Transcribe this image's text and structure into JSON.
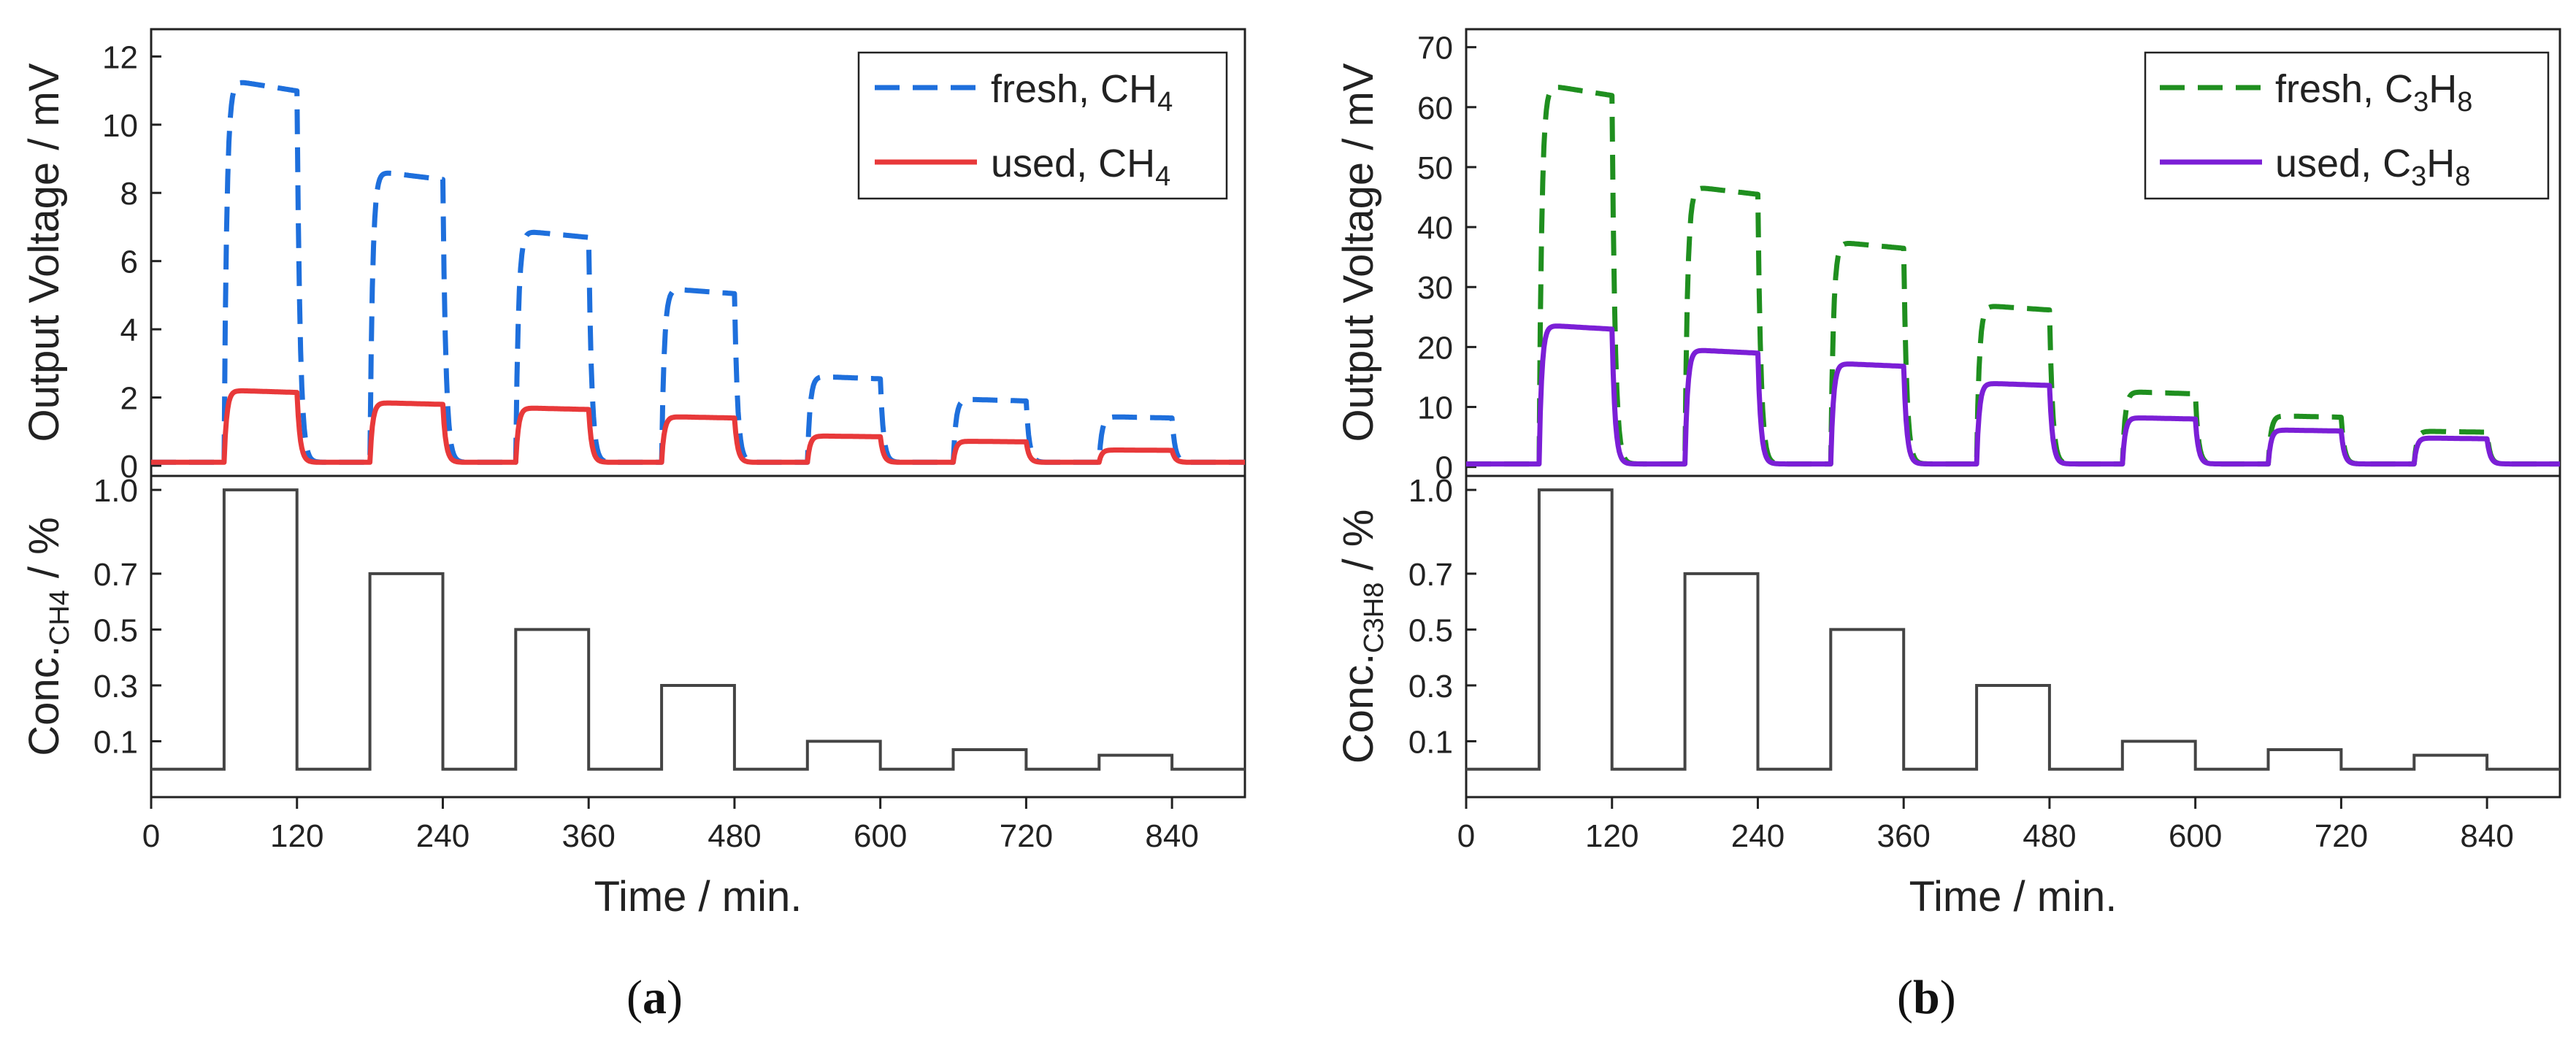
{
  "panels": [
    {
      "panel_label": "a",
      "top": {
        "ylabel": "Output Voltage / mV",
        "yticks": [
          0,
          2,
          4,
          6,
          8,
          10,
          12
        ],
        "ylim": [
          -0.3,
          12.8
        ],
        "legend": [
          {
            "prefix": "fresh, CH",
            "sub": "4",
            "suffix": "",
            "color": "#1e6fdc",
            "dash": true
          },
          {
            "prefix": "used, CH",
            "sub": "4",
            "suffix": "",
            "color": "#e8393a",
            "dash": false
          }
        ]
      },
      "bottom": {
        "ylabel_main": "Conc.",
        "ylabel_sub": "CH4",
        "ylabel_tail": " / %",
        "yticks": [
          0.1,
          0.3,
          0.5,
          0.7,
          1.0
        ],
        "ytick_labels": [
          "0.1",
          "0.3",
          "0.5",
          "0.7",
          "1.0"
        ],
        "ylim": [
          -0.1,
          1.05
        ]
      },
      "x_axis": {
        "label": "Time / min.",
        "ticks": [
          0,
          120,
          240,
          360,
          480,
          600,
          720,
          840
        ],
        "xlim": [
          0,
          900
        ]
      }
    },
    {
      "panel_label": "b",
      "top": {
        "ylabel": "Output Voltage / mV",
        "yticks": [
          0,
          10,
          20,
          30,
          40,
          50,
          60,
          70
        ],
        "ylim": [
          -1.5,
          73
        ],
        "legend": [
          {
            "prefix": "fresh, C",
            "sub": "3",
            "suffix": "H",
            "sub2": "8",
            "color": "#1f8f1f",
            "dash": true
          },
          {
            "prefix": "used, C",
            "sub": "3",
            "suffix": "H",
            "sub2": "8",
            "color": "#7b1fd6",
            "dash": false
          }
        ]
      },
      "bottom": {
        "ylabel_main": "Conc.",
        "ylabel_sub": "C3H8",
        "ylabel_tail": " / %",
        "yticks": [
          0.1,
          0.3,
          0.5,
          0.7,
          1.0
        ],
        "ytick_labels": [
          "0.1",
          "0.3",
          "0.5",
          "0.7",
          "1.0"
        ],
        "ylim": [
          -0.1,
          1.05
        ]
      },
      "x_axis": {
        "label": "Time / min.",
        "ticks": [
          0,
          120,
          240,
          360,
          480,
          600,
          720,
          840
        ],
        "xlim": [
          0,
          900
        ]
      }
    }
  ],
  "chart_data": [
    {
      "type": "line",
      "title": "",
      "xlabel": "Time / min.",
      "ylabel": "Output Voltage / mV",
      "xlim": [
        0,
        900
      ],
      "ylim": [
        -0.3,
        12.8
      ],
      "pulse_windows": [
        [
          60,
          120
        ],
        [
          180,
          240
        ],
        [
          300,
          360
        ],
        [
          420,
          480
        ],
        [
          540,
          600
        ],
        [
          660,
          720
        ],
        [
          780,
          840
        ]
      ],
      "series": [
        {
          "name": "fresh, CH4",
          "style": "dashed",
          "color": "#1e6fdc",
          "baseline": 0.1,
          "plateau_values": [
            11.0,
            8.4,
            6.7,
            5.05,
            2.55,
            1.9,
            1.4
          ]
        },
        {
          "name": "used, CH4",
          "style": "solid",
          "color": "#e8393a",
          "baseline": 0.1,
          "plateau_values": [
            2.15,
            1.8,
            1.65,
            1.4,
            0.85,
            0.7,
            0.45
          ]
        }
      ]
    },
    {
      "type": "line",
      "title": "",
      "xlabel": "Time / min.",
      "ylabel": "Conc. CH4 / %",
      "xlim": [
        0,
        900
      ],
      "ylim": [
        -0.1,
        1.05
      ],
      "series": [
        {
          "name": "Conc. CH4",
          "style": "step",
          "color": "#444444",
          "baseline": 0,
          "pulse_windows": [
            [
              60,
              120
            ],
            [
              180,
              240
            ],
            [
              300,
              360
            ],
            [
              420,
              480
            ],
            [
              540,
              600
            ],
            [
              660,
              720
            ],
            [
              780,
              840
            ]
          ],
          "values": [
            1.0,
            0.7,
            0.5,
            0.3,
            0.1,
            0.07,
            0.05
          ]
        }
      ]
    },
    {
      "type": "line",
      "title": "",
      "xlabel": "Time / min.",
      "ylabel": "Output Voltage / mV",
      "xlim": [
        0,
        900
      ],
      "ylim": [
        -1.5,
        73
      ],
      "pulse_windows": [
        [
          60,
          120
        ],
        [
          180,
          240
        ],
        [
          300,
          360
        ],
        [
          420,
          480
        ],
        [
          540,
          600
        ],
        [
          660,
          720
        ],
        [
          780,
          840
        ]
      ],
      "series": [
        {
          "name": "fresh, C3H8",
          "style": "dashed",
          "color": "#1f8f1f",
          "baseline": 0.5,
          "plateau_values": [
            62,
            45.5,
            36.5,
            26.2,
            12.2,
            8.3,
            5.8
          ]
        },
        {
          "name": "used, C3H8",
          "style": "solid",
          "color": "#7b1fd6",
          "baseline": 0.5,
          "plateau_values": [
            23,
            19,
            16.8,
            13.6,
            8.0,
            6.0,
            4.7
          ]
        }
      ]
    },
    {
      "type": "line",
      "title": "",
      "xlabel": "Time / min.",
      "ylabel": "Conc. C3H8 / %",
      "xlim": [
        0,
        900
      ],
      "ylim": [
        -0.1,
        1.05
      ],
      "series": [
        {
          "name": "Conc. C3H8",
          "style": "step",
          "color": "#444444",
          "baseline": 0,
          "pulse_windows": [
            [
              60,
              120
            ],
            [
              180,
              240
            ],
            [
              300,
              360
            ],
            [
              420,
              480
            ],
            [
              540,
              600
            ],
            [
              660,
              720
            ],
            [
              780,
              840
            ]
          ],
          "values": [
            1.0,
            0.7,
            0.5,
            0.3,
            0.1,
            0.07,
            0.05
          ]
        }
      ]
    }
  ]
}
